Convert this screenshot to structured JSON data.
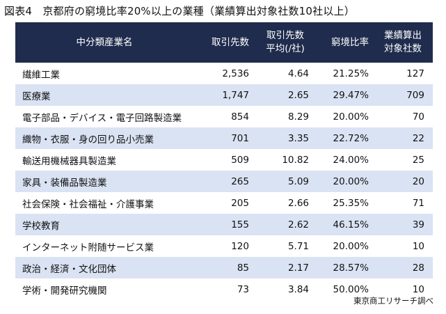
{
  "title": "図表4　京都府の窮境比率20%以上の業種（業績算出対象社数10社以上）",
  "headers": {
    "name": "中分類産業名",
    "suppliers": "取引先数",
    "avg_line1": "取引先数",
    "avg_line2": "平均(/社)",
    "ratio": "窮境比率",
    "target_line1": "業績算出",
    "target_line2": "対象社数"
  },
  "rows": [
    {
      "name": "繊維工業",
      "suppliers": "2,536",
      "avg": "4.64",
      "ratio": "21.25%",
      "target": "127"
    },
    {
      "name": "医療業",
      "suppliers": "1,747",
      "avg": "2.65",
      "ratio": "29.47%",
      "target": "709"
    },
    {
      "name": "電子部品・デバイス・電子回路製造業",
      "suppliers": "854",
      "avg": "8.29",
      "ratio": "20.00%",
      "target": "70"
    },
    {
      "name": "織物・衣服・身の回り品小売業",
      "suppliers": "701",
      "avg": "3.35",
      "ratio": "22.72%",
      "target": "22"
    },
    {
      "name": "輸送用機械器具製造業",
      "suppliers": "509",
      "avg": "10.82",
      "ratio": "24.00%",
      "target": "25"
    },
    {
      "name": "家具・装備品製造業",
      "suppliers": "265",
      "avg": "5.09",
      "ratio": "20.00%",
      "target": "20"
    },
    {
      "name": "社会保険・社会福祉・介護事業",
      "suppliers": "205",
      "avg": "2.66",
      "ratio": "25.35%",
      "target": "71"
    },
    {
      "name": "学校教育",
      "suppliers": "155",
      "avg": "2.62",
      "ratio": "46.15%",
      "target": "39"
    },
    {
      "name": "インターネット附随サービス業",
      "suppliers": "120",
      "avg": "5.71",
      "ratio": "20.00%",
      "target": "10"
    },
    {
      "name": "政治・経済・文化団体",
      "suppliers": "85",
      "avg": "2.17",
      "ratio": "28.57%",
      "target": "28"
    },
    {
      "name": "学術・開発研究機関",
      "suppliers": "73",
      "avg": "3.84",
      "ratio": "50.00%",
      "target": "10"
    }
  ],
  "source": "東京商工リサーチ調べ",
  "colors": {
    "header_bg": "#1f2c4d",
    "header_text": "#ffffff",
    "stripe": "#dae3f3"
  }
}
